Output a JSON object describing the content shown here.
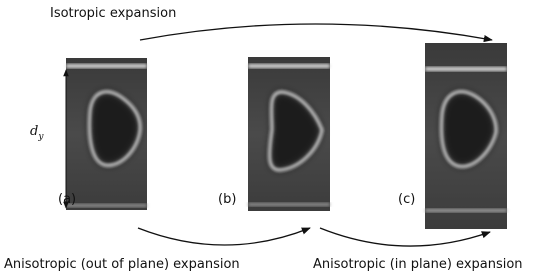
{
  "top_label": "Isotropic expansion",
  "dimension": {
    "base": "d",
    "sub": "y"
  },
  "panels": [
    {
      "label": "(a)"
    },
    {
      "label": "(b)"
    },
    {
      "label": "(c)"
    }
  ],
  "bottom_labels": [
    "Anisotropic (out of plane) expansion",
    "Anisotropic (in plane) expansion"
  ]
}
